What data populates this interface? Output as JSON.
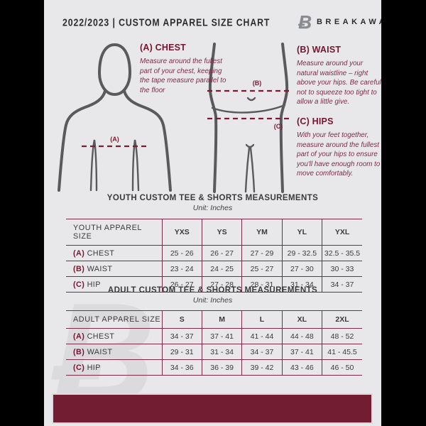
{
  "header": {
    "title": "2022/2023 | CUSTOM APPAREL SIZE CHART",
    "brand": "BREAKAWAY",
    "logo_glyph": "Ƀ"
  },
  "measurement_guide": {
    "chest": {
      "heading": "(A) CHEST",
      "marker": "(A)",
      "body": "Measure around the fullest part of your chest, keeping the tape measure parallel to the floor"
    },
    "waist": {
      "heading": "(B) WAIST",
      "marker": "(B)",
      "body": "Measure around your natural waistline – right above your hips. Be careful not to squeeze too tight to allow a little give."
    },
    "hips": {
      "heading": "(C) HIPS",
      "marker": "(C)",
      "body": "With your feet together, measure around the fullest part of your hips to ensure you'll have enough room to move comfortably."
    }
  },
  "youth_table": {
    "title": "YOUTH CUSTOM TEE & SHORTS MEASUREMENTS",
    "unit": "Unit: Inches",
    "size_label": "YOUTH APPAREL SIZE",
    "sizes": [
      "YXS",
      "YS",
      "YM",
      "YL",
      "YXL"
    ],
    "rows": [
      {
        "prefix": "(A)",
        "label": "CHEST",
        "values": [
          "25 - 26",
          "26 - 27",
          "27 - 29",
          "29 - 32.5",
          "32.5 - 35.5"
        ]
      },
      {
        "prefix": "(B)",
        "label": "WAIST",
        "values": [
          "23 - 24",
          "24 - 25",
          "25 - 27",
          "27 - 30",
          "30 - 33"
        ]
      },
      {
        "prefix": "(C)",
        "label": "HIP",
        "values": [
          "26 - 27",
          "27 - 28",
          "28 - 31",
          "31 - 34",
          "34 - 37"
        ]
      }
    ]
  },
  "adult_table": {
    "title": "ADULT CUSTOM TEE & SHORTS MEASUREMENTS",
    "unit": "Unit: Inches",
    "size_label": "ADULT APPAREL SIZE",
    "sizes": [
      "S",
      "M",
      "L",
      "XL",
      "2XL"
    ],
    "rows": [
      {
        "prefix": "(A)",
        "label": "CHEST",
        "values": [
          "34 - 37",
          "37 - 41",
          "41 - 44",
          "44 - 48",
          "48 - 52"
        ]
      },
      {
        "prefix": "(B)",
        "label": "WAIST",
        "values": [
          "29 - 31",
          "31 - 34",
          "34 - 37",
          "37 - 41",
          "41 - 45.5"
        ]
      },
      {
        "prefix": "(C)",
        "label": "HIP",
        "values": [
          "34 - 36",
          "36 - 39",
          "39 - 42",
          "43 - 46",
          "46 - 50"
        ]
      }
    ]
  },
  "colors": {
    "maroon_bar": "#731d32",
    "heading_maroon": "#77152f",
    "table_border": "#7d2947",
    "text_dark": "#3a3a3c",
    "silhouette_gray": "#595a5c",
    "page_background": "#e8e8ea"
  }
}
